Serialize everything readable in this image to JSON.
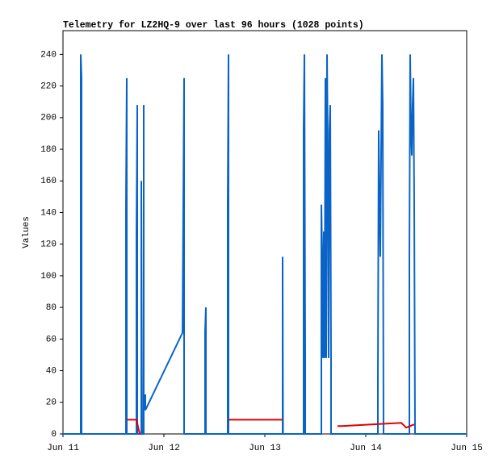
{
  "chart_data": {
    "type": "line",
    "title": "Telemetry for LZ2HQ-9 over last 96 hours (1028 points)",
    "y_label": "Values",
    "xlim": [
      11,
      15
    ],
    "xticks": [
      {
        "value": 11,
        "label": "Jun 11"
      },
      {
        "value": 12,
        "label": "Jun 12"
      },
      {
        "value": 13,
        "label": "Jun 13"
      },
      {
        "value": 14,
        "label": "Jun 14"
      },
      {
        "value": 15,
        "label": "Jun 15"
      }
    ],
    "ylim": [
      0,
      255
    ],
    "yticks": [
      0,
      20,
      40,
      60,
      80,
      100,
      120,
      140,
      160,
      180,
      200,
      220,
      240
    ],
    "series": [
      {
        "color": "#0a64c8",
        "x": [
          11.0,
          11.176,
          11.176,
          11.184,
          11.184,
          11.624,
          11.624,
          11.632,
          11.632,
          11.728,
          11.728,
          11.736,
          11.736,
          11.776,
          11.776,
          11.784,
          11.8,
          11.8,
          11.8,
          11.816,
          11.816,
          12.184,
          12.2,
          12.2,
          12.408,
          12.408,
          12.416,
          12.416,
          12.632,
          12.632,
          12.64,
          12.64,
          13.176,
          13.176,
          13.18,
          13.384,
          13.384,
          13.392,
          13.4,
          13.4,
          13.56,
          13.56,
          13.568,
          13.576,
          13.584,
          13.592,
          13.6,
          13.608,
          13.616,
          13.624,
          13.632,
          13.64,
          13.648,
          13.656,
          13.656,
          14.12,
          14.12,
          14.128,
          14.136,
          14.144,
          14.152,
          14.16,
          14.168,
          14.176,
          14.432,
          14.432,
          14.44,
          14.448,
          14.456,
          14.464,
          14.472,
          14.48,
          14.488,
          15.0
        ],
        "values": [
          0,
          0,
          240,
          225,
          0,
          0,
          145,
          225,
          0,
          0,
          128,
          208,
          0,
          0,
          160,
          0,
          0,
          208,
          15,
          25,
          15,
          64,
          225,
          0,
          0,
          65,
          80,
          0,
          0,
          145,
          240,
          0,
          0,
          112,
          0,
          0,
          192,
          240,
          48,
          0,
          0,
          145,
          112,
          48,
          128,
          48,
          225,
          48,
          240,
          176,
          48,
          192,
          208,
          48,
          0,
          0,
          32,
          192,
          145,
          112,
          176,
          240,
          208,
          0,
          0,
          112,
          240,
          192,
          176,
          208,
          225,
          145,
          0,
          0
        ]
      },
      {
        "color": "#e00000",
        "x": [
          11.632,
          11.728,
          11.76,
          11.9,
          12.64,
          13.176,
          13.3,
          13.72,
          13.76,
          14.056,
          14.352,
          14.4,
          14.48
        ],
        "values": [
          9,
          9,
          0,
          null,
          9,
          9,
          null,
          5,
          5,
          6,
          7,
          4,
          6
        ]
      }
    ]
  }
}
